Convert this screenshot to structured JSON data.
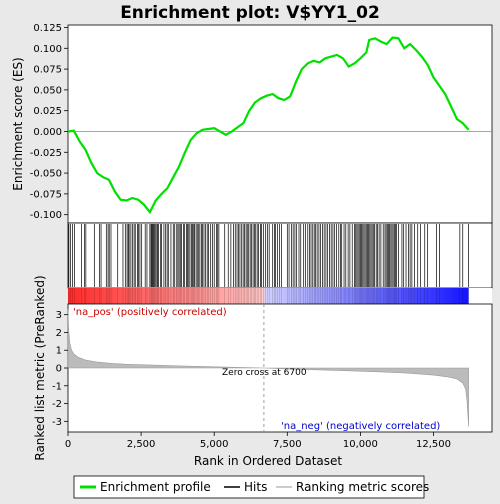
{
  "chart_data": {
    "type": "line",
    "title": "Enrichment plot: V$YY1_02",
    "top_panel": {
      "ylabel": "Enrichment score (ES)",
      "ylim": [
        -0.11,
        0.128
      ],
      "yticks": [
        -0.1,
        -0.075,
        -0.05,
        -0.025,
        0.0,
        0.025,
        0.05,
        0.075,
        0.1,
        0.125
      ],
      "ytick_labels": [
        "-0.100",
        "-0.075",
        "-0.050",
        "-0.025",
        "0.000",
        "0.025",
        "0.050",
        "0.075",
        "0.100",
        "0.125"
      ],
      "series": [
        {
          "name": "Enrichment profile",
          "color": "#00e000",
          "x": [
            0,
            200,
            400,
            600,
            800,
            1000,
            1200,
            1400,
            1600,
            1800,
            2000,
            2200,
            2400,
            2600,
            2800,
            2900,
            3000,
            3200,
            3400,
            3600,
            3800,
            4000,
            4200,
            4400,
            4600,
            4800,
            5000,
            5200,
            5400,
            5600,
            5800,
            6000,
            6200,
            6400,
            6600,
            6800,
            7000,
            7200,
            7400,
            7600,
            7800,
            8000,
            8200,
            8400,
            8600,
            8800,
            9000,
            9200,
            9400,
            9600,
            9800,
            10000,
            10200,
            10300,
            10500,
            10700,
            10900,
            11100,
            11300,
            11500,
            11700,
            11900,
            12100,
            12300,
            12500,
            12700,
            12900,
            13100,
            13300,
            13500,
            13700
          ],
          "y": [
            0.0,
            0.001,
            -0.012,
            -0.022,
            -0.038,
            -0.05,
            -0.055,
            -0.058,
            -0.072,
            -0.082,
            -0.083,
            -0.08,
            -0.082,
            -0.088,
            -0.097,
            -0.09,
            -0.083,
            -0.075,
            -0.068,
            -0.055,
            -0.042,
            -0.025,
            -0.01,
            -0.002,
            0.002,
            0.003,
            0.004,
            0.0,
            -0.004,
            0.0,
            0.005,
            0.01,
            0.025,
            0.035,
            0.04,
            0.043,
            0.045,
            0.04,
            0.038,
            0.042,
            0.06,
            0.075,
            0.082,
            0.085,
            0.083,
            0.088,
            0.09,
            0.092,
            0.088,
            0.078,
            0.082,
            0.088,
            0.095,
            0.11,
            0.112,
            0.108,
            0.105,
            0.113,
            0.112,
            0.1,
            0.105,
            0.098,
            0.09,
            0.08,
            0.065,
            0.055,
            0.045,
            0.03,
            0.015,
            0.01,
            0.002
          ]
        }
      ]
    },
    "hits_x": [
      30,
      80,
      150,
      220,
      460,
      560,
      610,
      900,
      1080,
      1130,
      1310,
      1370,
      1410,
      1470,
      1700,
      1880,
      1960,
      2020,
      2060,
      2090,
      2150,
      2200,
      2260,
      2300,
      2380,
      2410,
      2460,
      2520,
      2640,
      2700,
      2800,
      2840,
      2870,
      2900,
      2930,
      2960,
      3000,
      3040,
      3060,
      3100,
      3170,
      3200,
      3280,
      3340,
      3390,
      3430,
      3520,
      3600,
      3650,
      3720,
      3760,
      3800,
      3840,
      3880,
      3950,
      3990,
      4050,
      4090,
      4130,
      4170,
      4220,
      4260,
      4300,
      4330,
      4380,
      4420,
      4470,
      4510,
      4560,
      4600,
      4650,
      4700,
      4760,
      4800,
      4880,
      4940,
      5000,
      5080,
      5120,
      5160,
      5360,
      5480,
      5570,
      5660,
      5720,
      5780,
      5830,
      5880,
      5940,
      5990,
      6040,
      6090,
      6130,
      6180,
      6230,
      6280,
      6330,
      6380,
      6420,
      6470,
      6520,
      6580,
      6620,
      6680,
      6760,
      6820,
      6880,
      7000,
      7060,
      7100,
      7160,
      7230,
      7300,
      7500,
      7560,
      7640,
      7700,
      7760,
      7820,
      7900,
      7960,
      8060,
      8120,
      8200,
      8260,
      8310,
      8370,
      8420,
      8470,
      8520,
      8580,
      8640,
      8700,
      8760,
      8820,
      8880,
      8940,
      9000,
      9060,
      9120,
      9180,
      9260,
      9320,
      9360,
      9440,
      9500,
      9580,
      9640,
      9720,
      9800,
      9840,
      9880,
      9920,
      9960,
      10000,
      10040,
      10080,
      10120,
      10160,
      10200,
      10240,
      10280,
      10320,
      10360,
      10400,
      10440,
      10480,
      10540,
      10580,
      10640,
      10700,
      10780,
      10840,
      10880,
      10920,
      10960,
      11000,
      11040,
      11080,
      11120,
      11160,
      11200,
      11240,
      11300,
      11420,
      11480,
      11560,
      11640,
      11700,
      11760,
      11850,
      11960,
      12060,
      12200,
      12300,
      12600,
      12700,
      13400,
      13500,
      13700
    ],
    "color_bar": {
      "pos_color": "#ff0000",
      "neg_color": "#0000ff",
      "label_pos": "'na_pos' (positively correlated)",
      "label_neg": "'na_neg' (negatively correlated)"
    },
    "bottom_panel": {
      "ylabel": "Ranked list metric (PreRanked)",
      "ylim": [
        -3.6,
        3.6
      ],
      "yticks": [
        -3,
        -2,
        -1,
        0,
        1,
        2,
        3
      ],
      "ytick_labels": [
        "-3",
        "-2",
        "-1",
        "0",
        "1",
        "2",
        "3"
      ],
      "metric_x": [
        0,
        20,
        60,
        120,
        200,
        350,
        600,
        1000,
        1500,
        2000,
        3000,
        4000,
        5000,
        6000,
        6700,
        7500,
        8500,
        9500,
        10500,
        11500,
        12000,
        12500,
        13000,
        13300,
        13500,
        13600,
        13650,
        13700
      ],
      "metric_y": [
        3.3,
        2.2,
        1.4,
        1.0,
        0.8,
        0.6,
        0.45,
        0.33,
        0.26,
        0.21,
        0.16,
        0.11,
        0.07,
        0.03,
        0.0,
        -0.05,
        -0.1,
        -0.15,
        -0.21,
        -0.28,
        -0.33,
        -0.4,
        -0.5,
        -0.62,
        -0.85,
        -1.2,
        -1.9,
        -3.3
      ],
      "zero_cross_label": "Zero cross at 6700",
      "zero_cross_x": 6700
    },
    "xaxis": {
      "label": "Rank in Ordered Dataset",
      "xlim": [
        0,
        14500
      ],
      "xticks": [
        0,
        2500,
        5000,
        7500,
        10000,
        12500
      ],
      "xtick_labels": [
        "0",
        "2,500",
        "5,000",
        "7,500",
        "10,000",
        "12,500"
      ]
    },
    "legend": {
      "placement": "bottom",
      "items": [
        {
          "label": "Enrichment profile",
          "color": "#00e000"
        },
        {
          "label": "Hits",
          "color": "#000000"
        },
        {
          "label": "Ranking metric scores",
          "color": "#bbbbbb"
        }
      ]
    }
  }
}
